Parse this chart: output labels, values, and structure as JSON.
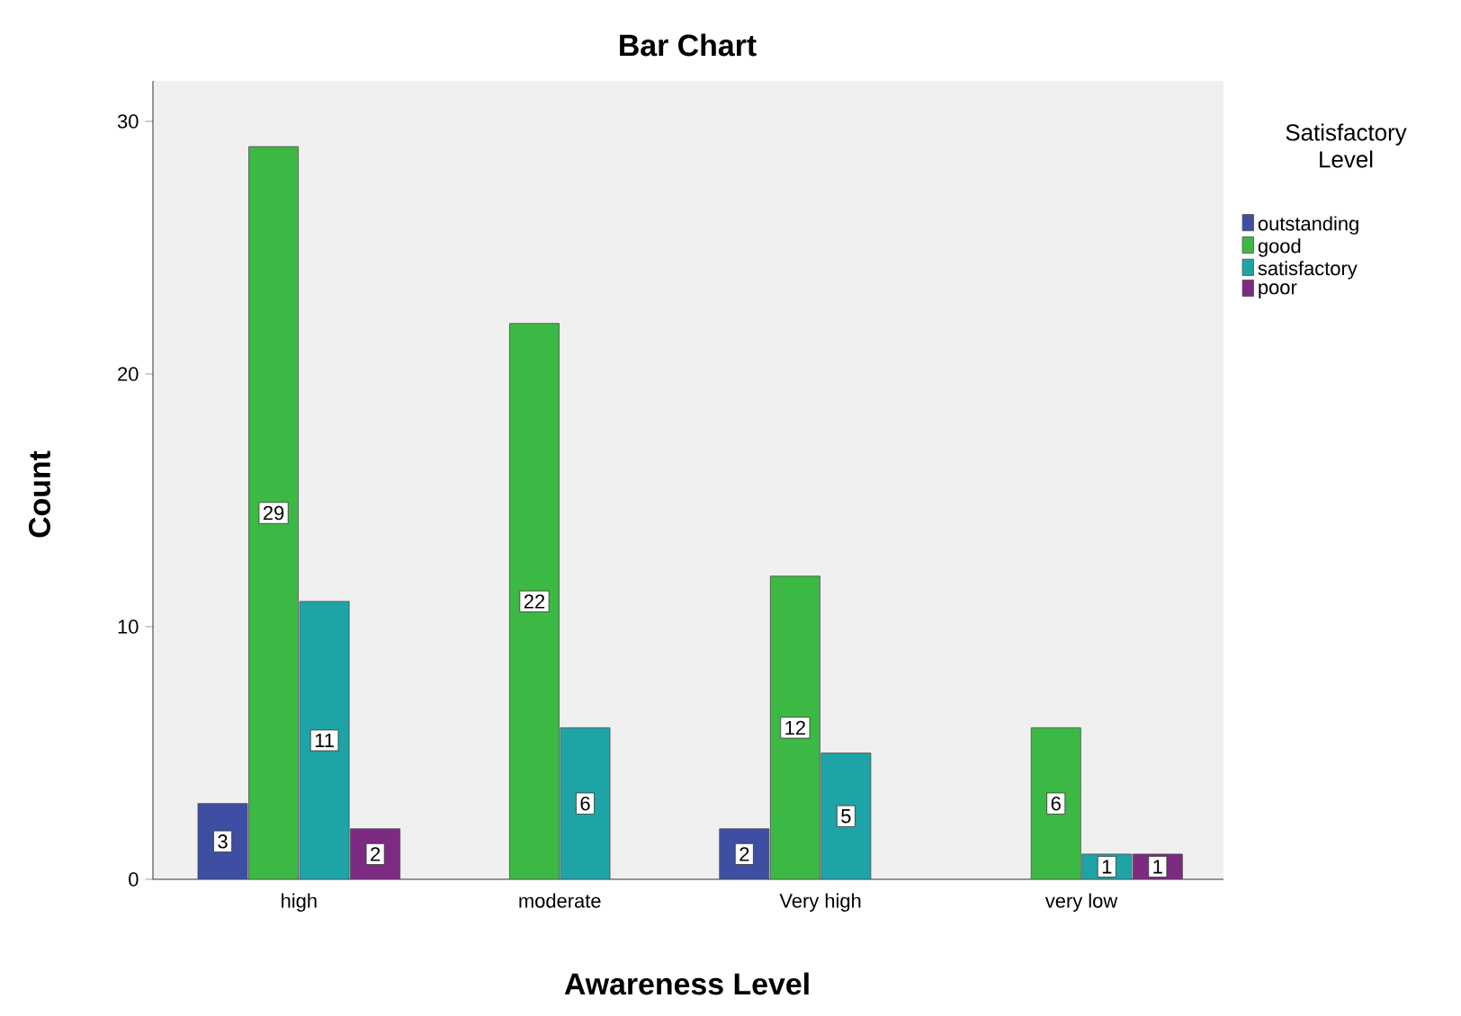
{
  "chart_data": {
    "type": "bar",
    "title": "Bar Chart",
    "xlabel": "Awareness Level",
    "ylabel": "Count",
    "legend_title": "Satisfactory Level",
    "categories": [
      "high",
      "moderate",
      "Very high",
      "very low"
    ],
    "series": [
      {
        "name": "outstanding",
        "color": "#3e4fa3",
        "values": [
          3,
          null,
          2,
          null
        ]
      },
      {
        "name": "good",
        "color": "#3cb944",
        "values": [
          29,
          22,
          12,
          6
        ]
      },
      {
        "name": "satisfactory",
        "color": "#1ea4a6",
        "values": [
          11,
          6,
          5,
          1
        ]
      },
      {
        "name": "poor",
        "color": "#7d2a83",
        "values": [
          2,
          null,
          null,
          1
        ]
      }
    ],
    "ylim": [
      0,
      31.6
    ],
    "yticks": [
      0,
      10,
      20,
      30
    ],
    "data_labels": true,
    "legend": "right",
    "grid": false
  }
}
